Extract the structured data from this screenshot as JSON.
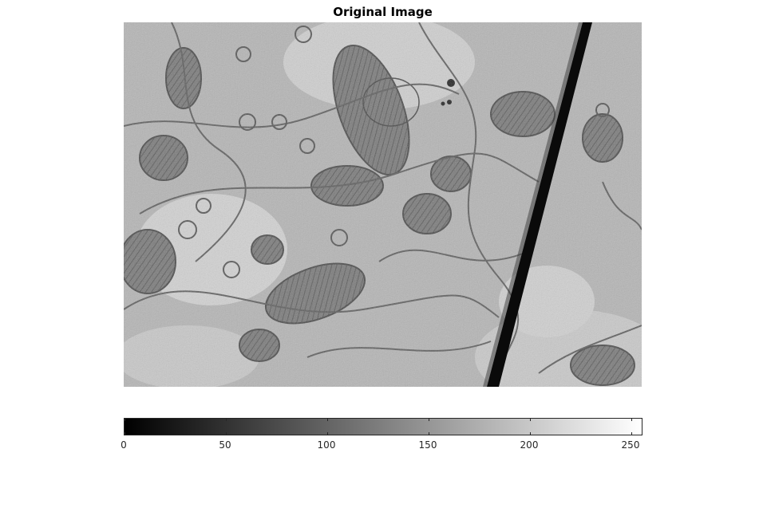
{
  "figure": {
    "title": "Original Image"
  },
  "image": {
    "description": "grayscale electron micrograph of tissue with mitochondria and a dark diagonal scratch"
  },
  "colorbar": {
    "range": [
      0,
      255
    ],
    "ticks": [
      {
        "value": 0,
        "label": "0"
      },
      {
        "value": 50,
        "label": "50"
      },
      {
        "value": 100,
        "label": "100"
      },
      {
        "value": 150,
        "label": "150"
      },
      {
        "value": 200,
        "label": "200"
      },
      {
        "value": 250,
        "label": "250"
      }
    ],
    "colormap": "gray"
  },
  "colors": {
    "axis": "#262626",
    "background": "#ffffff"
  }
}
